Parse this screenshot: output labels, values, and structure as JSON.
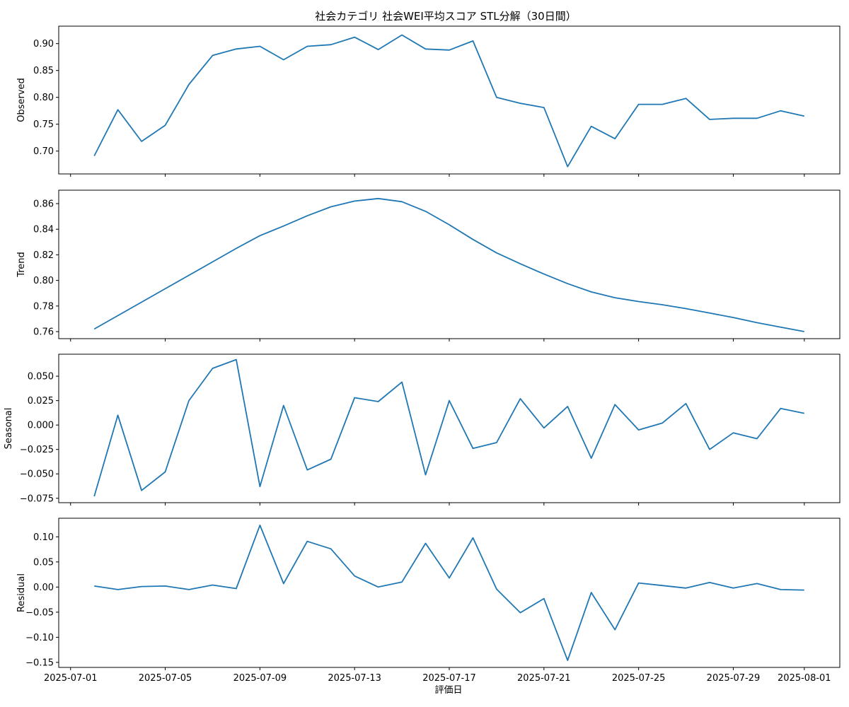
{
  "chart_data": {
    "type": "line",
    "title": "社会カテゴリ 社会WEI平均スコア STL分解（30日間）",
    "xlabel": "評価日",
    "x_ticks": [
      "2025-07-01",
      "2025-07-05",
      "2025-07-09",
      "2025-07-13",
      "2025-07-17",
      "2025-07-21",
      "2025-07-25",
      "2025-07-29",
      "2025-08-01"
    ],
    "x_range": [
      "2025-06-30T12:00",
      "2025-08-02T12:00"
    ],
    "dates": [
      "2025-07-02",
      "2025-07-03",
      "2025-07-04",
      "2025-07-05",
      "2025-07-06",
      "2025-07-07",
      "2025-07-08",
      "2025-07-09",
      "2025-07-10",
      "2025-07-11",
      "2025-07-12",
      "2025-07-13",
      "2025-07-14",
      "2025-07-15",
      "2025-07-16",
      "2025-07-17",
      "2025-07-18",
      "2025-07-19",
      "2025-07-20",
      "2025-07-21",
      "2025-07-22",
      "2025-07-23",
      "2025-07-24",
      "2025-07-25",
      "2025-07-26",
      "2025-07-27",
      "2025-07-28",
      "2025-07-29",
      "2025-07-30",
      "2025-07-31",
      "2025-08-01"
    ],
    "line_color": "#1f77b4",
    "grid": false,
    "panels": [
      {
        "ylabel": "Observed",
        "ylim": [
          0.6575,
          0.9325
        ],
        "y_ticks": [
          0.7,
          0.75,
          0.8,
          0.85,
          0.9
        ],
        "y_tick_labels": [
          "0.70",
          "0.75",
          "0.80",
          "0.85",
          "0.90"
        ],
        "values": [
          0.691,
          0.777,
          0.718,
          0.748,
          0.824,
          0.878,
          0.89,
          0.895,
          0.87,
          0.895,
          0.898,
          0.912,
          0.889,
          0.916,
          0.89,
          0.888,
          0.905,
          0.8,
          0.789,
          0.781,
          0.671,
          0.746,
          0.723,
          0.787,
          0.787,
          0.798,
          0.759,
          0.761,
          0.761,
          0.775,
          0.765
        ]
      },
      {
        "ylabel": "Trend",
        "ylim": [
          0.7545,
          0.8705
        ],
        "y_ticks": [
          0.76,
          0.78,
          0.8,
          0.82,
          0.84,
          0.86
        ],
        "y_tick_labels": [
          "0.76",
          "0.78",
          "0.80",
          "0.82",
          "0.84",
          "0.86"
        ],
        "values": [
          0.762,
          0.7725,
          0.783,
          0.7935,
          0.804,
          0.8145,
          0.825,
          0.835,
          0.8425,
          0.8505,
          0.8575,
          0.862,
          0.864,
          0.8615,
          0.854,
          0.8435,
          0.832,
          0.8215,
          0.813,
          0.805,
          0.7975,
          0.791,
          0.7865,
          0.7835,
          0.781,
          0.778,
          0.7745,
          0.771,
          0.767,
          0.7635,
          0.76
        ]
      },
      {
        "ylabel": "Seasonal",
        "ylim": [
          -0.0795,
          0.0725
        ],
        "y_ticks": [
          -0.075,
          -0.05,
          -0.025,
          0.0,
          0.025,
          0.05
        ],
        "y_tick_labels": [
          "−0.075",
          "−0.050",
          "−0.025",
          "0.000",
          "0.025",
          "0.050"
        ],
        "values": [
          -0.073,
          0.01,
          -0.067,
          -0.048,
          0.025,
          0.058,
          0.067,
          -0.063,
          0.02,
          -0.046,
          -0.035,
          0.028,
          0.024,
          0.044,
          -0.051,
          0.025,
          -0.024,
          -0.018,
          0.027,
          -0.003,
          0.019,
          -0.034,
          0.021,
          -0.005,
          0.002,
          0.022,
          -0.025,
          -0.008,
          -0.014,
          0.017,
          0.012
        ]
      },
      {
        "ylabel": "Residual",
        "ylim": [
          -0.16,
          0.137
        ],
        "y_ticks": [
          -0.15,
          -0.1,
          -0.05,
          0.0,
          0.05,
          0.1
        ],
        "y_tick_labels": [
          "−0.15",
          "−0.10",
          "−0.05",
          "0.00",
          "0.05",
          "0.10"
        ],
        "values": [
          0.002,
          -0.005,
          0.001,
          0.002,
          -0.005,
          0.004,
          -0.003,
          0.123,
          0.007,
          0.091,
          0.076,
          0.022,
          0.0,
          0.01,
          0.087,
          0.018,
          0.098,
          -0.004,
          -0.051,
          -0.023,
          -0.146,
          -0.011,
          -0.085,
          0.008,
          0.003,
          -0.002,
          0.009,
          -0.002,
          0.007,
          -0.005,
          -0.006
        ]
      }
    ]
  }
}
